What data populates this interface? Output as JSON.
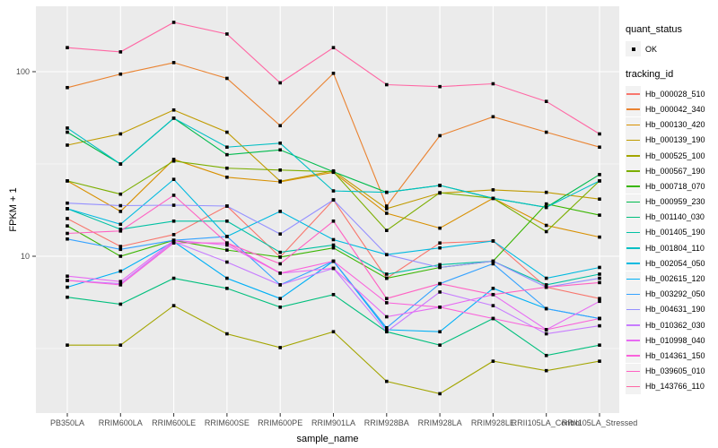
{
  "axes": {
    "x_title": "sample_name",
    "y_title": "FPKM + 1",
    "y_ticks": [
      {
        "label": "100",
        "value": 100
      },
      {
        "label": "10",
        "value": 10
      }
    ]
  },
  "legend": {
    "quant_title": "quant_status",
    "quant_items": [
      {
        "label": "OK",
        "marker": "black-point"
      }
    ],
    "tracking_title": "tracking_id"
  },
  "panel": {
    "background": "#EBEBEB",
    "gridline_color": "#FFFFFF",
    "tick_color": "#333333",
    "tick_label_color": "#4D4D4D"
  },
  "chart_data": {
    "type": "line",
    "xlabel": "sample_name",
    "ylabel": "FPKM + 1",
    "y_scale": "log10",
    "y_domain": [
      1.4,
      226
    ],
    "y_major_gridlines": [
      10,
      100
    ],
    "y_minor_gridlines": [
      3.162,
      31.62
    ],
    "grid": "on",
    "legend_position": "right",
    "point_marker": "small black square (quant_status = OK)",
    "categories": [
      "PB350LA",
      "RRIM600LA",
      "RRIM600LE",
      "RRIM600SE",
      "RRIM600PE",
      "RRIM901LA",
      "RRIM928BA",
      "RRIM928LA",
      "RRIM928LE",
      "RRII105LA_Control",
      "RRII105LA_Stressed"
    ],
    "series": [
      {
        "name": "Hb_000028_510",
        "color": "#F8766D",
        "values": [
          16.0,
          11.3,
          13.1,
          18.7,
          9.9,
          20.2,
          7.6,
          11.8,
          12.1,
          6.8,
          5.9
        ]
      },
      {
        "name": "Hb_000042_340",
        "color": "#EA8331",
        "values": [
          82,
          97,
          112,
          92,
          51,
          98,
          18.7,
          45,
          57,
          47,
          39
        ]
      },
      {
        "name": "Hb_000130_420",
        "color": "#D89000",
        "values": [
          25.6,
          17.5,
          33.5,
          26.8,
          25.3,
          28.5,
          17.1,
          14.2,
          20.6,
          14.7,
          12.7
        ]
      },
      {
        "name": "Hb_000139_190",
        "color": "#C09B00",
        "values": [
          40,
          46,
          62,
          47,
          25.5,
          29,
          18.1,
          22,
          22.9,
          22.2,
          20.4
        ]
      },
      {
        "name": "Hb_000525_100",
        "color": "#A3A500",
        "values": [
          3.3,
          3.3,
          5.4,
          3.8,
          3.2,
          3.9,
          2.1,
          1.8,
          2.7,
          2.4,
          2.7
        ]
      },
      {
        "name": "Hb_000567_190",
        "color": "#7CAE00",
        "values": [
          25.6,
          21.7,
          32.8,
          30,
          29.3,
          28.7,
          13.8,
          22.1,
          20.6,
          13.6,
          25.6
        ]
      },
      {
        "name": "Hb_000718_070",
        "color": "#39B600",
        "values": [
          14.6,
          10.0,
          12.2,
          10.8,
          9.9,
          11.1,
          7.6,
          8.7,
          9.4,
          19.2,
          16.7
        ]
      },
      {
        "name": "Hb_000959_230",
        "color": "#00BB4E",
        "values": [
          47,
          31.6,
          56,
          35.5,
          37.7,
          28.7,
          22.2,
          24.2,
          20.6,
          18.4,
          27.7
        ]
      },
      {
        "name": "Hb_001140_030",
        "color": "#00BF7D",
        "values": [
          6.0,
          5.5,
          7.6,
          6.7,
          5.3,
          6.2,
          3.9,
          3.3,
          4.6,
          2.9,
          3.3
        ]
      },
      {
        "name": "Hb_001405_190",
        "color": "#00C1A3",
        "values": [
          18.1,
          14.0,
          15.5,
          15.5,
          10.5,
          11.5,
          8.0,
          9.0,
          9.4,
          7.0,
          8.0
        ]
      },
      {
        "name": "Hb_001804_110",
        "color": "#00BFC4",
        "values": [
          49.5,
          31.6,
          56,
          39,
          41,
          22.6,
          22.2,
          24.2,
          20.6,
          18.4,
          25.6
        ]
      },
      {
        "name": "Hb_002054_050",
        "color": "#00BAE0",
        "values": [
          18.1,
          14.9,
          26.1,
          12.8,
          17.5,
          12.3,
          10.2,
          11.1,
          12.1,
          7.6,
          8.7
        ]
      },
      {
        "name": "Hb_002615_120",
        "color": "#00B0F6",
        "values": [
          6.8,
          8.3,
          12.0,
          7.6,
          5.9,
          9.4,
          4.0,
          3.9,
          6.7,
          5.2,
          4.6
        ]
      },
      {
        "name": "Hb_003292_050",
        "color": "#35A2FF",
        "values": [
          12.4,
          10.9,
          12.2,
          12.8,
          7.0,
          9.4,
          4.1,
          7.1,
          9.1,
          5.2,
          4.6
        ]
      },
      {
        "name": "Hb_004631_190",
        "color": "#9590FF",
        "values": [
          19.4,
          18.8,
          18.9,
          18.7,
          13.2,
          20.2,
          10.2,
          8.7,
          9.4,
          6.8,
          7.6
        ]
      },
      {
        "name": "Hb_010362_030",
        "color": "#C77CFF",
        "values": [
          7.4,
          7.1,
          12.0,
          9.3,
          7.0,
          8.6,
          3.9,
          6.4,
          5.4,
          3.8,
          4.2
        ]
      },
      {
        "name": "Hb_010998_040",
        "color": "#E76BF3",
        "values": [
          7.8,
          7.3,
          12.2,
          11.5,
          8.1,
          8.6,
          4.7,
          5.3,
          6.2,
          4.0,
          5.7
        ]
      },
      {
        "name": "Hb_014361_150",
        "color": "#FA62DB",
        "values": [
          7.4,
          7.0,
          11.8,
          11.8,
          8.1,
          9.4,
          5.6,
          5.3,
          4.6,
          4.0,
          4.6
        ]
      },
      {
        "name": "Hb_039605_010",
        "color": "#FF61C3",
        "values": [
          13.3,
          13.7,
          21.4,
          11.8,
          9.1,
          15.5,
          5.9,
          7.1,
          6.2,
          6.8,
          7.2
        ]
      },
      {
        "name": "Hb_143766_110",
        "color": "#FF67A4",
        "values": [
          135,
          128,
          185,
          160,
          87,
          135,
          85,
          83,
          86,
          69,
          46
        ]
      }
    ]
  }
}
